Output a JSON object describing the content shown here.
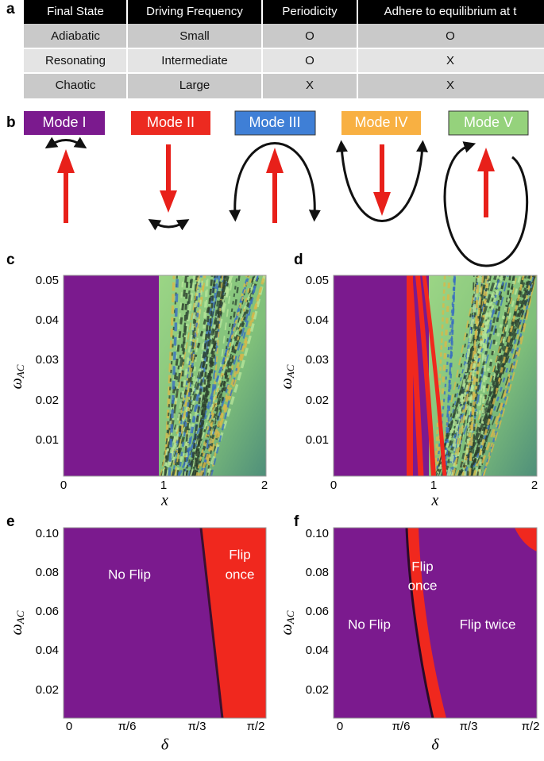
{
  "panel_letters": [
    "a",
    "b",
    "c",
    "d",
    "e",
    "f"
  ],
  "table": {
    "header": [
      "Final State",
      "Driving Frequency",
      "Periodicity",
      "Adhere to equilibrium at t"
    ],
    "rows": [
      [
        "Adiabatic",
        "Small",
        "O",
        "O"
      ],
      [
        "Resonating",
        "Intermediate",
        "O",
        "X"
      ],
      [
        "Chaotic",
        "Large",
        "X",
        "X"
      ]
    ]
  },
  "modes": [
    "Mode I",
    "Mode II",
    "Mode III",
    "Mode IV",
    "Mode V"
  ],
  "panels": [
    {
      "yticks": [
        "0.05",
        "0.04",
        "0.03",
        "0.02",
        "0.01"
      ],
      "xticks": [
        "0",
        "1",
        "2"
      ],
      "xlabel": "x",
      "ylabel": {
        "symbol": "ω",
        "sub": "AC"
      }
    },
    {
      "yticks": [
        "0.05",
        "0.04",
        "0.03",
        "0.02",
        "0.01"
      ],
      "xticks": [
        "0",
        "1",
        "2"
      ],
      "xlabel": "x",
      "ylabel": {
        "symbol": "ω",
        "sub": "AC"
      }
    },
    {
      "yticks": [
        "0.10",
        "0.08",
        "0.06",
        "0.04",
        "0.02"
      ],
      "xticks": [
        "0",
        "π/6",
        "π/3",
        "π/2"
      ],
      "xlabel": "δ",
      "ylabel": {
        "symbol": "ω",
        "sub": "AC"
      },
      "annotations": [
        "No Flip",
        "Flip",
        "once"
      ]
    },
    {
      "yticks": [
        "0.10",
        "0.08",
        "0.06",
        "0.04",
        "0.02"
      ],
      "xticks": [
        "0",
        "π/6",
        "π/3",
        "π/2"
      ],
      "xlabel": "δ",
      "ylabel": {
        "symbol": "ω",
        "sub": "AC"
      },
      "annotations": [
        "No Flip",
        "Flip",
        "once",
        "Flip twice"
      ]
    }
  ]
}
